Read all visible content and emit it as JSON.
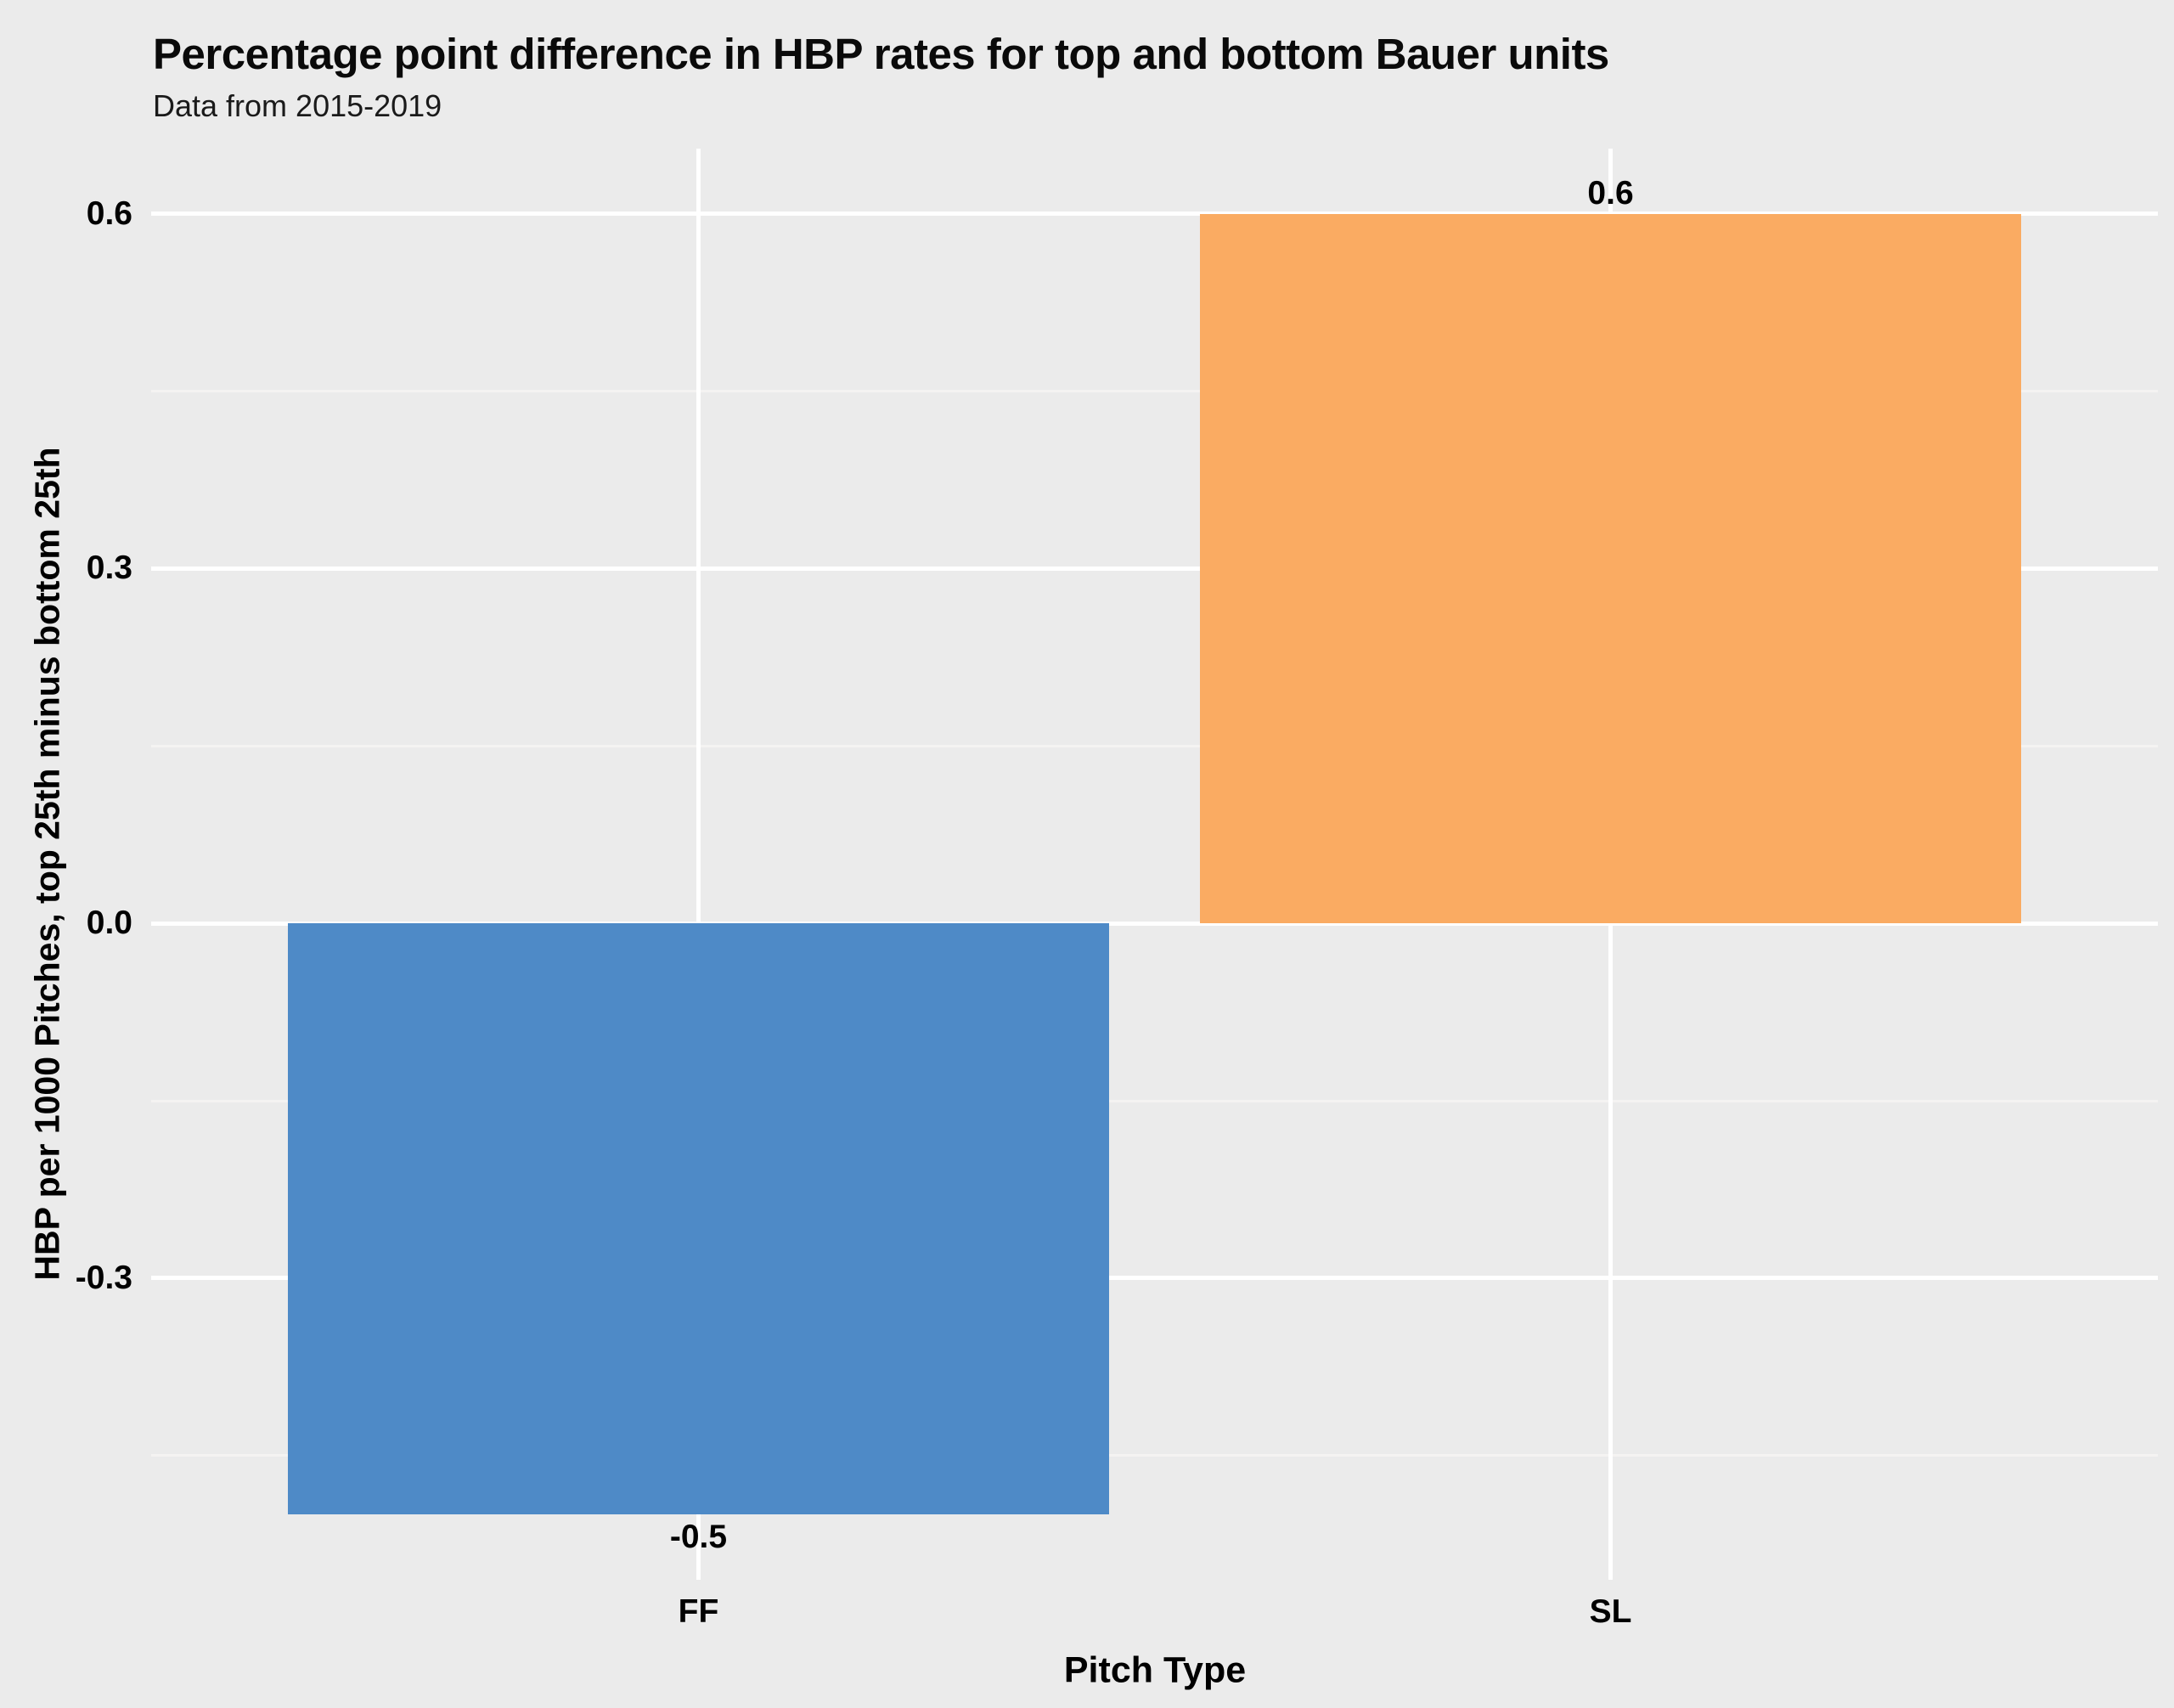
{
  "chart_data": {
    "type": "bar",
    "title": "Percentage point difference in HBP rates for top and bottom Bauer units",
    "subtitle": "Data from 2015-2019",
    "xlabel": "Pitch Type",
    "ylabel": "HBP per 1000 Pitches, top 25th minus bottom 25th",
    "categories": [
      "FF",
      "SL"
    ],
    "values": [
      -0.5,
      0.6
    ],
    "bar_value_labels": [
      "-0.5",
      "0.6"
    ],
    "bar_colors": [
      "#4E8AC7",
      "#FAAB62"
    ],
    "ylim": [
      -0.555,
      0.655
    ],
    "y_major_ticks": [
      {
        "value": 0.6,
        "label": "0.6"
      },
      {
        "value": 0.3,
        "label": "0.3"
      },
      {
        "value": 0.0,
        "label": "0.0"
      },
      {
        "value": -0.3,
        "label": "-0.3"
      }
    ],
    "y_minor_ticks": [
      0.45,
      0.15,
      -0.15,
      -0.45
    ],
    "legend_position": "none",
    "grid": "white major gridlines (horizontal at ticks, vertical at category centers) with faint minors on grey panel",
    "colors": {
      "background": "#EBEBEB",
      "grid_major": "#FFFFFF",
      "grid_minor": "#F4F3F2",
      "text": "#000000",
      "bar_ff": "#4E8AC7",
      "bar_sl": "#FAAB62"
    }
  }
}
